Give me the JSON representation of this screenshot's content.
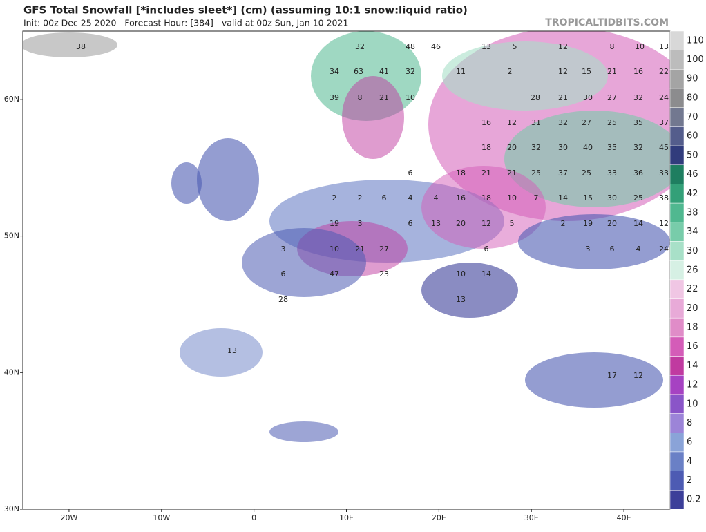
{
  "header": {
    "title": "GFS Total Snowfall [*includes sleet*] (cm) (assuming 10:1 snow:liquid ratio)",
    "subtitle": "Init: 00z Dec 25 2020   Forecast Hour: [384]   valid at 00z Sun, Jan 10 2021",
    "watermark": "TROPICALTIDBITS.COM"
  },
  "map": {
    "lonlim": [
      -25,
      45
    ],
    "latlim": [
      30,
      65
    ],
    "lon_ticks": [
      {
        "value": -20,
        "label": "20W"
      },
      {
        "value": -10,
        "label": "10W"
      },
      0,
      {
        "value": 10,
        "label": "10E"
      },
      {
        "value": 20,
        "label": "20E"
      },
      {
        "value": 30,
        "label": "30E"
      },
      {
        "value": 40,
        "label": "40E"
      }
    ],
    "lat_ticks": [
      {
        "value": 60,
        "label": "60N"
      },
      {
        "value": 50,
        "label": "50N"
      },
      {
        "value": 40,
        "label": "40N"
      },
      {
        "value": 30,
        "label": "30N"
      }
    ],
    "labels": [
      "38",
      "32",
      "48",
      "46",
      "13",
      "5",
      "12",
      "8",
      "10",
      "13",
      "34",
      "63",
      "41",
      "32",
      "11",
      "2",
      "12",
      "15",
      "21",
      "16",
      "22",
      "39",
      "8",
      "21",
      "10",
      "28",
      "21",
      "30",
      "27",
      "32",
      "24",
      "16",
      "12",
      "31",
      "32",
      "27",
      "25",
      "35",
      "37",
      "18",
      "20",
      "32",
      "30",
      "40",
      "35",
      "32",
      "45",
      "6",
      "18",
      "21",
      "21",
      "25",
      "37",
      "25",
      "33",
      "36",
      "33",
      "2",
      "2",
      "6",
      "4",
      "4",
      "16",
      "18",
      "10",
      "7",
      "14",
      "15",
      "30",
      "25",
      "38",
      "19",
      "3",
      "6",
      "13",
      "20",
      "12",
      "5",
      "2",
      "19",
      "20",
      "14",
      "12",
      "3",
      "10",
      "21",
      "27",
      "6",
      "3",
      "6",
      "4",
      "24",
      "6",
      "47",
      "23",
      "10",
      "14",
      "28",
      "13",
      "13",
      "17",
      "12"
    ]
  },
  "colorbar": {
    "levels": [
      110,
      100,
      90,
      80,
      70,
      60,
      50,
      46,
      42,
      38,
      34,
      30,
      26,
      22,
      20,
      18,
      16,
      14,
      12,
      10,
      8,
      6,
      4,
      2,
      0.2
    ],
    "colors": [
      "#d8d8d8",
      "#bcbcbc",
      "#a4a4a4",
      "#8c8c8e",
      "#727890",
      "#545d8c",
      "#313c7c",
      "#1e7e60",
      "#33a078",
      "#50b890",
      "#78ccaa",
      "#a8e0c8",
      "#d6f0e4",
      "#f0c6e4",
      "#e8aad8",
      "#e08cc8",
      "#d45cb8",
      "#c03aa0",
      "#a642c2",
      "#8a55c8",
      "#9c84d8",
      "#8aa3d8",
      "#6a80c6",
      "#4d5bb3",
      "#3c3f99"
    ]
  }
}
